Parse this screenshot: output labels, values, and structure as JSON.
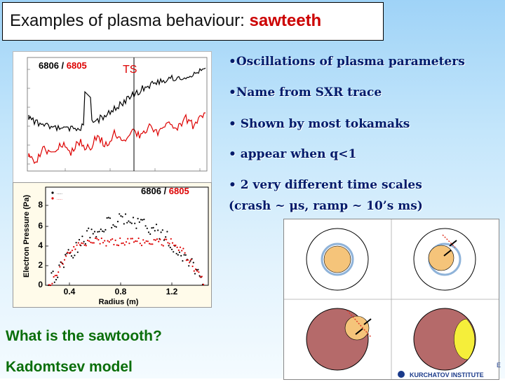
{
  "title": {
    "prefix": "Examples of plasma behaviour: ",
    "highlight": "sawteeth"
  },
  "bullets": [
    "•Oscillations of plasma parameters",
    "•Name from SXR trace",
    "• Shown by most tokamaks",
    "• appear when q<1",
    "• 2 very different time scales",
    "(crash ~ μs, ramp ~ 10’s ms)"
  ],
  "bottom": {
    "question": "What is the sawtooth?",
    "model": "Kadomtsev model"
  },
  "ts_plot": {
    "shot_black": "6806",
    "separator": " / ",
    "shot_red": "6805",
    "ts_label": "TS",
    "colors": {
      "series_a": "#000000",
      "series_b": "#dd0000"
    }
  },
  "pe_plot": {
    "shot_black": "6806",
    "separator": " / ",
    "shot_red": "6805",
    "ylabel": "Electron Pressure (Pa)",
    "xlabel": "Radius (m)",
    "yticks": [
      "0",
      "2",
      "4",
      "6",
      "8"
    ],
    "xticks": [
      "0.4",
      "0.8",
      "1.2"
    ],
    "colors": {
      "series_a": "#000000",
      "series_b": "#dd0000"
    }
  },
  "kadomtsev": {
    "colors": {
      "core": "#f5c47a",
      "reconnected": "#b56a6a",
      "island": "#f5ee3a",
      "arrow": "#e03b2a"
    }
  },
  "logo": {
    "text": "KURCHATOV INSTITUTE",
    "edge_letter": "E"
  }
}
